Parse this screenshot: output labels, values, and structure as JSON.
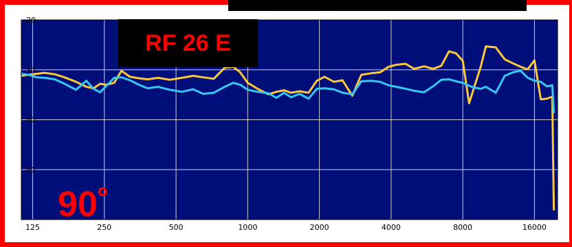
{
  "chart_data": {
    "type": "line",
    "title": "",
    "xlabel": "",
    "ylabel": "",
    "x_scale": "log",
    "xlim": [
      112,
      20000
    ],
    "ylim": [
      -60,
      -20
    ],
    "grid": true,
    "x_ticks": [
      125,
      250,
      500,
      1000,
      2000,
      4000,
      8000,
      16000
    ],
    "x_tick_labels": [
      "125",
      "250",
      "500",
      "1000",
      "2000",
      "4000",
      "8000",
      "16000"
    ],
    "y_ticks": [
      -20,
      -30,
      -40,
      -50
    ],
    "y_tick_labels": [
      "-20",
      "-30",
      "-40",
      "-50"
    ],
    "colors": {
      "plot_background": "#000e7a",
      "grid": "#d0d0d0",
      "frame": "#ff0000",
      "label_text": "#ff0000",
      "label_box": "#000000"
    },
    "series": [
      {
        "color": "#ffc83a",
        "x": [
          112,
          120,
          130,
          140,
          155,
          170,
          190,
          210,
          225,
          240,
          255,
          275,
          295,
          320,
          350,
          380,
          420,
          470,
          530,
          590,
          650,
          720,
          800,
          870,
          930,
          1000,
          1100,
          1220,
          1320,
          1420,
          1520,
          1650,
          1800,
          1950,
          2100,
          2300,
          2500,
          2750,
          3000,
          3300,
          3600,
          3900,
          4200,
          4600,
          5000,
          5500,
          6000,
          6500,
          7000,
          7500,
          8000,
          8500,
          9000,
          9500,
          10000,
          11000,
          12000,
          13000,
          14000,
          15000,
          16000,
          17000,
          18000,
          19000,
          19300
        ],
        "y": [
          -31.2,
          -31.0,
          -30.8,
          -30.6,
          -30.9,
          -31.5,
          -32.4,
          -33.4,
          -33.7,
          -32.8,
          -33.0,
          -32.6,
          -30.2,
          -31.4,
          -31.7,
          -31.9,
          -31.6,
          -32.0,
          -31.6,
          -31.2,
          -31.5,
          -31.8,
          -29.6,
          -29.4,
          -30.5,
          -32.6,
          -33.8,
          -34.9,
          -34.4,
          -34.1,
          -34.6,
          -34.3,
          -34.6,
          -32.2,
          -31.4,
          -32.4,
          -32.1,
          -35.2,
          -31.0,
          -30.7,
          -30.5,
          -29.4,
          -29.0,
          -28.8,
          -29.8,
          -29.3,
          -29.8,
          -29.2,
          -26.3,
          -26.7,
          -28.2,
          -36.7,
          -33.0,
          -29.5,
          -25.3,
          -25.5,
          -27.9,
          -28.7,
          -29.4,
          -29.9,
          -28.1,
          -35.9,
          -35.8,
          -35.4,
          -58.0
        ]
      },
      {
        "color": "#36c8f2",
        "x": [
          112,
          120,
          130,
          140,
          155,
          170,
          190,
          210,
          225,
          240,
          255,
          275,
          295,
          320,
          350,
          380,
          420,
          470,
          530,
          590,
          650,
          720,
          800,
          870,
          930,
          1000,
          1100,
          1220,
          1320,
          1420,
          1520,
          1650,
          1800,
          1950,
          2100,
          2300,
          2500,
          2750,
          3000,
          3300,
          3600,
          3900,
          4200,
          4600,
          5000,
          5500,
          6000,
          6500,
          7000,
          7500,
          8000,
          8500,
          9000,
          9500,
          10000,
          11000,
          12000,
          13000,
          14000,
          15000,
          16000,
          17000,
          18000,
          19000,
          19300
        ],
        "y": [
          -30.8,
          -31.0,
          -31.5,
          -31.6,
          -31.9,
          -32.8,
          -34.0,
          -32.2,
          -33.8,
          -34.5,
          -33.2,
          -31.6,
          -31.5,
          -32.1,
          -33.0,
          -33.7,
          -33.4,
          -34.0,
          -34.4,
          -33.9,
          -34.8,
          -34.6,
          -33.4,
          -32.6,
          -33.0,
          -34.0,
          -34.4,
          -34.7,
          -35.6,
          -34.6,
          -35.5,
          -34.8,
          -35.8,
          -33.8,
          -33.7,
          -33.9,
          -34.6,
          -34.9,
          -32.3,
          -32.2,
          -32.4,
          -33.1,
          -33.4,
          -33.8,
          -34.2,
          -34.5,
          -33.3,
          -32.0,
          -31.9,
          -32.3,
          -32.6,
          -33.2,
          -33.6,
          -33.8,
          -33.4,
          -34.6,
          -31.2,
          -30.5,
          -30.2,
          -31.6,
          -32.2,
          -32.4,
          -33.3,
          -33.1,
          -38.5
        ]
      }
    ]
  },
  "labels": {
    "model": "RF 26 E",
    "angle": "90˚"
  }
}
